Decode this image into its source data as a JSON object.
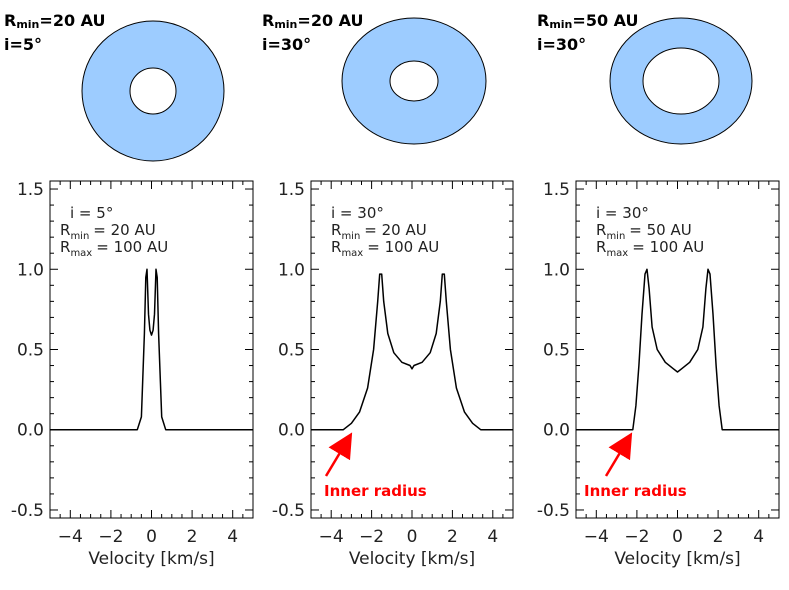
{
  "colors": {
    "disk_fill": "#9dccff",
    "curve": "#000000",
    "arrow": "#ff0000",
    "frame": "#000000"
  },
  "disks": [
    {
      "rmin_label": "R",
      "rmin_sub": "min",
      "rmin_value": "=20 AU",
      "incl_label": "i=5°"
    },
    {
      "rmin_label": "R",
      "rmin_sub": "min",
      "rmin_value": "=20 AU",
      "incl_label": "i=30°"
    },
    {
      "rmin_label": "R",
      "rmin_sub": "min",
      "rmin_value": "=50 AU",
      "incl_label": "i=30°"
    }
  ],
  "arrow_label": "Inner radius",
  "chart_data": [
    {
      "type": "line",
      "xlabel": "Velocity [km/s]",
      "xlim": [
        -5,
        5
      ],
      "ylim": [
        -0.55,
        1.55
      ],
      "xticks": [
        "−4",
        "−2",
        "0",
        "2",
        "4"
      ],
      "yticks": [
        "-0.5",
        "0.0",
        "0.5",
        "1.0",
        "1.5"
      ],
      "annotation": {
        "i_line": "i =   5°",
        "rmin_line": "=   20 AU",
        "rmax_line": "=  100 AU"
      },
      "series": [
        {
          "x": [
            -5,
            -0.7,
            -0.5,
            -0.35,
            -0.28,
            -0.22,
            -0.15,
            -0.08,
            0,
            0.08,
            0.15,
            0.22,
            0.28,
            0.35,
            0.5,
            0.7,
            5
          ],
          "y": [
            0,
            0,
            0.08,
            0.6,
            0.95,
            1.0,
            0.72,
            0.62,
            0.59,
            0.62,
            0.72,
            1.0,
            0.95,
            0.6,
            0.08,
            0,
            0
          ]
        }
      ]
    },
    {
      "type": "line",
      "xlabel": "Velocity [km/s]",
      "xlim": [
        -5,
        5
      ],
      "ylim": [
        -0.55,
        1.55
      ],
      "xticks": [
        "−4",
        "−2",
        "0",
        "2",
        "4"
      ],
      "yticks": [
        "-0.5",
        "0.0",
        "0.5",
        "1.0",
        "1.5"
      ],
      "annotation": {
        "i_line": "i =  30°",
        "rmin_line": "=   20 AU",
        "rmax_line": "=  100 AU"
      },
      "series": [
        {
          "x": [
            -5,
            -3.4,
            -3.0,
            -2.6,
            -2.2,
            -1.9,
            -1.7,
            -1.6,
            -1.5,
            -1.4,
            -1.2,
            -0.9,
            -0.5,
            -0.1,
            0,
            0.1,
            0.5,
            0.9,
            1.2,
            1.4,
            1.5,
            1.6,
            1.7,
            1.9,
            2.2,
            2.6,
            3.0,
            3.4,
            5
          ],
          "y": [
            0,
            0,
            0.04,
            0.11,
            0.26,
            0.5,
            0.8,
            0.97,
            0.97,
            0.8,
            0.6,
            0.48,
            0.42,
            0.4,
            0.38,
            0.4,
            0.42,
            0.48,
            0.6,
            0.8,
            0.97,
            0.97,
            0.8,
            0.5,
            0.26,
            0.11,
            0.04,
            0,
            0
          ]
        }
      ]
    },
    {
      "type": "line",
      "xlabel": "Velocity [km/s]",
      "xlim": [
        -5,
        5
      ],
      "ylim": [
        -0.55,
        1.55
      ],
      "xticks": [
        "−4",
        "−2",
        "0",
        "2",
        "4"
      ],
      "yticks": [
        "-0.5",
        "0.0",
        "0.5",
        "1.0",
        "1.5"
      ],
      "annotation": {
        "i_line": "i =  30°",
        "rmin_line": "=   50 AU",
        "rmax_line": "=  100 AU"
      },
      "series": [
        {
          "x": [
            -5,
            -2.2,
            -2.05,
            -1.9,
            -1.75,
            -1.6,
            -1.5,
            -1.4,
            -1.25,
            -1.0,
            -0.6,
            -0.2,
            0,
            0.2,
            0.6,
            1.0,
            1.25,
            1.4,
            1.5,
            1.6,
            1.75,
            1.9,
            2.05,
            2.2,
            5
          ],
          "y": [
            0,
            0,
            0.15,
            0.4,
            0.72,
            0.97,
            1.0,
            0.88,
            0.64,
            0.5,
            0.42,
            0.38,
            0.36,
            0.38,
            0.42,
            0.5,
            0.64,
            0.88,
            1.0,
            0.97,
            0.72,
            0.4,
            0.15,
            0,
            0
          ]
        }
      ]
    }
  ]
}
